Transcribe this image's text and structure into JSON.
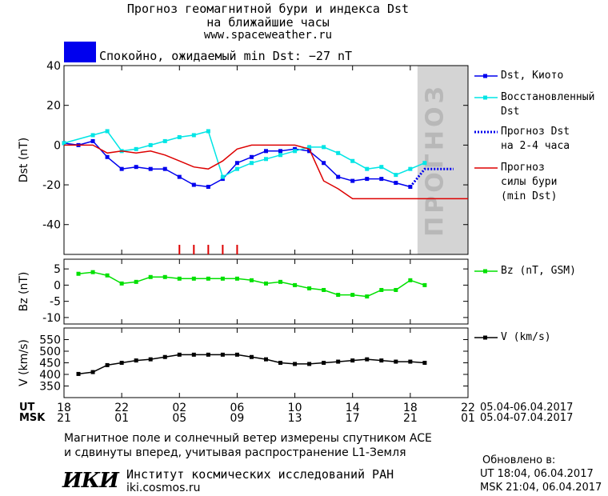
{
  "header": {
    "title_line1": "Прогноз геомагнитной бури и индекса Dst",
    "title_line2": "на ближайшие часы",
    "url": "www.spaceweather.ru"
  },
  "status": {
    "color": "#0000ee",
    "text": "Спокойно, ожидаемый min Dst: −27 nT"
  },
  "legend": {
    "dst_kyoto": "Dst, Киото",
    "restored_1": "Восстановленный",
    "restored_2": "Dst",
    "forecast_1": "Прогноз Dst",
    "forecast_2": "на 2-4 часа",
    "storm_1": "Прогноз",
    "storm_2": "силы бури",
    "storm_3": "(min Dst)",
    "bz": "Bz (nT, GSM)",
    "v": "V (km/s)"
  },
  "forecast_band_label": "ПРОГНОЗ",
  "time_axis": {
    "ut_label": "UT",
    "msk_label": "MSK",
    "ut_ticks": [
      "18",
      "22",
      "02",
      "06",
      "10",
      "14",
      "18",
      "22"
    ],
    "msk_ticks": [
      "21",
      "01",
      "05",
      "09",
      "13",
      "17",
      "21",
      "01"
    ],
    "ut_range": "05.04-06.04.2017",
    "msk_range": "05.04-07.04.2017"
  },
  "footer": {
    "note_line1": "Магнитное поле и солнечный ветер измерены спутником ACE",
    "note_line2": "и сдвинуты вперед, учитывая распространение L1-Земля",
    "institute": "Институт космических исследований РАН",
    "site": "iki.cosmos.ru",
    "logo": "ИКИ",
    "updated_title": "Обновлено в:",
    "updated_ut": "UT  18:04, 06.04.2017",
    "updated_msk": "MSK 21:04, 06.04.2017"
  },
  "chart_data": [
    {
      "type": "line",
      "ylabel": "Dst (nT)",
      "ylim": [
        -55,
        40
      ],
      "yticks": [
        40,
        20,
        0,
        -20,
        -40
      ],
      "xlim": [
        0,
        28
      ],
      "x_unit": "hours since 18 UT 05.04.2017",
      "forecast_band": [
        24.5,
        28
      ],
      "storm_markers": [
        8,
        9,
        10,
        11,
        12
      ],
      "series": [
        {
          "name": "Dst, Киото",
          "color": "#0000ee",
          "x": [
            0,
            1,
            2,
            3,
            4,
            5,
            6,
            7,
            8,
            9,
            10,
            11,
            12,
            13,
            14,
            15,
            16,
            17,
            18,
            19,
            20,
            21,
            22,
            23,
            24
          ],
          "y": [
            1,
            0,
            2,
            -6,
            -12,
            -11,
            -12,
            -12,
            -16,
            -20,
            -21,
            -17,
            -9,
            -6,
            -3,
            -3,
            -2,
            -3,
            -9,
            -16,
            -18,
            -17,
            -17,
            -19,
            -21
          ]
        },
        {
          "name": "Восстановленный Dst",
          "color": "#00e5e5",
          "x": [
            0,
            2,
            3,
            4,
            5,
            6,
            7,
            8,
            9,
            10,
            11,
            12,
            13,
            14,
            15,
            16,
            17,
            18,
            19,
            20,
            21,
            22,
            23,
            24,
            25
          ],
          "y": [
            1,
            5,
            7,
            -3,
            -2,
            0,
            2,
            4,
            5,
            7,
            -16,
            -12,
            -9,
            -7,
            -5,
            -3,
            -1,
            -1,
            -4,
            -8,
            -12,
            -11,
            -15,
            -12,
            -9
          ]
        },
        {
          "name": "Прогноз Dst на 2-4 часа",
          "color": "#0000ee",
          "x": [
            24,
            25,
            26,
            27
          ],
          "y": [
            -21,
            -12,
            -12,
            -12
          ]
        },
        {
          "name": "Прогноз силы бури (min Dst)",
          "color": "#dd0000",
          "x": [
            0,
            1,
            2,
            3,
            4,
            5,
            6,
            7,
            8,
            9,
            10,
            11,
            12,
            13,
            14,
            15,
            16,
            17,
            18,
            19,
            20,
            21,
            22,
            23,
            24,
            25,
            26,
            27,
            28
          ],
          "y": [
            0,
            0,
            0,
            -4,
            -3,
            -4,
            -3,
            -5,
            -8,
            -11,
            -12,
            -8,
            -2,
            0,
            0,
            0,
            0,
            -2,
            -18,
            -22,
            -27,
            -27,
            -27,
            -27,
            -27,
            -27,
            -27,
            -27,
            -27
          ]
        }
      ]
    },
    {
      "type": "line",
      "ylabel": "Bz (nT)",
      "ylim": [
        -12,
        8
      ],
      "yticks": [
        5,
        0,
        -5,
        -10
      ],
      "xlim": [
        0,
        28
      ],
      "series": [
        {
          "name": "Bz (nT, GSM)",
          "color": "#00e000",
          "x": [
            1,
            2,
            3,
            4,
            5,
            6,
            7,
            8,
            9,
            10,
            11,
            12,
            13,
            14,
            15,
            16,
            17,
            18,
            19,
            20,
            21,
            22,
            23,
            24,
            25
          ],
          "y": [
            3.5,
            4,
            3,
            0.5,
            1,
            2.5,
            2.5,
            2,
            2,
            2,
            2,
            2,
            1.5,
            0.5,
            1,
            0,
            -1,
            -1.5,
            -3,
            -3,
            -3.5,
            -1.5,
            -1.5,
            1.5,
            0
          ]
        }
      ]
    },
    {
      "type": "line",
      "ylabel": "V (km/s)",
      "ylim": [
        300,
        600
      ],
      "yticks": [
        350,
        400,
        450,
        500,
        550
      ],
      "xlim": [
        0,
        28
      ],
      "series": [
        {
          "name": "V (km/s)",
          "color": "#000000",
          "x": [
            1,
            2,
            3,
            4,
            5,
            6,
            7,
            8,
            9,
            10,
            11,
            12,
            13,
            14,
            15,
            16,
            17,
            18,
            19,
            20,
            21,
            22,
            23,
            24,
            25
          ],
          "y": [
            402,
            410,
            440,
            450,
            460,
            465,
            475,
            485,
            485,
            485,
            485,
            485,
            475,
            465,
            450,
            445,
            445,
            450,
            455,
            460,
            465,
            460,
            455,
            455,
            450
          ]
        }
      ]
    }
  ]
}
